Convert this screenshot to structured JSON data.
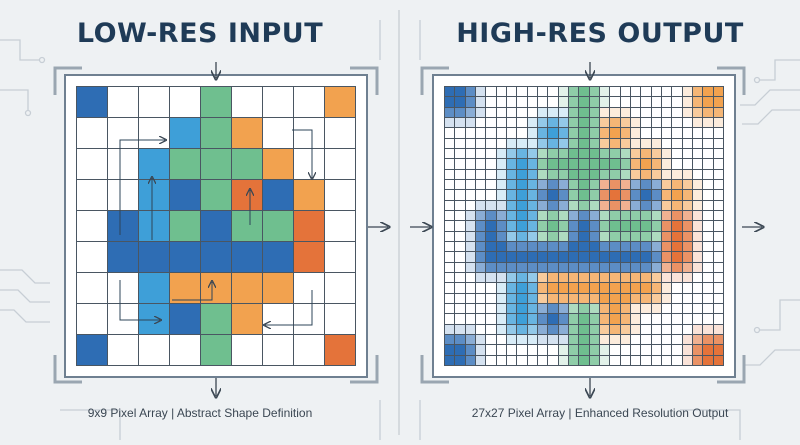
{
  "left": {
    "title": "LOW-RES INPUT",
    "caption": "9x9 Pixel Array | Abstract Shape Definition",
    "grid_size": 9,
    "cells": [
      "BWWWGWWWO",
      "WWWCGOWWW",
      "WWCGGGOWW",
      "WWCBGRBOW",
      "WBCGBGGRW",
      "WBBBBBBRW",
      "WWCOOOOWW",
      "WWCBGOWWW",
      "BWWWGWWWR"
    ]
  },
  "right": {
    "title": "HIGH-RES OUTPUT",
    "caption": "27x27 Pixel Array | Enhanced Resolution Output",
    "grid_size": 27
  },
  "palette": {
    "W": "#ffffff",
    "B": "#2e6db4",
    "C": "#3e9fd8",
    "G": "#6fbf8f",
    "O": "#f2a24f",
    "R": "#e4733a"
  },
  "colors": {
    "title": "#1f3b57",
    "grid_line": "#4a5662",
    "frame": "#6f8091",
    "arrow": "#3b4753"
  }
}
